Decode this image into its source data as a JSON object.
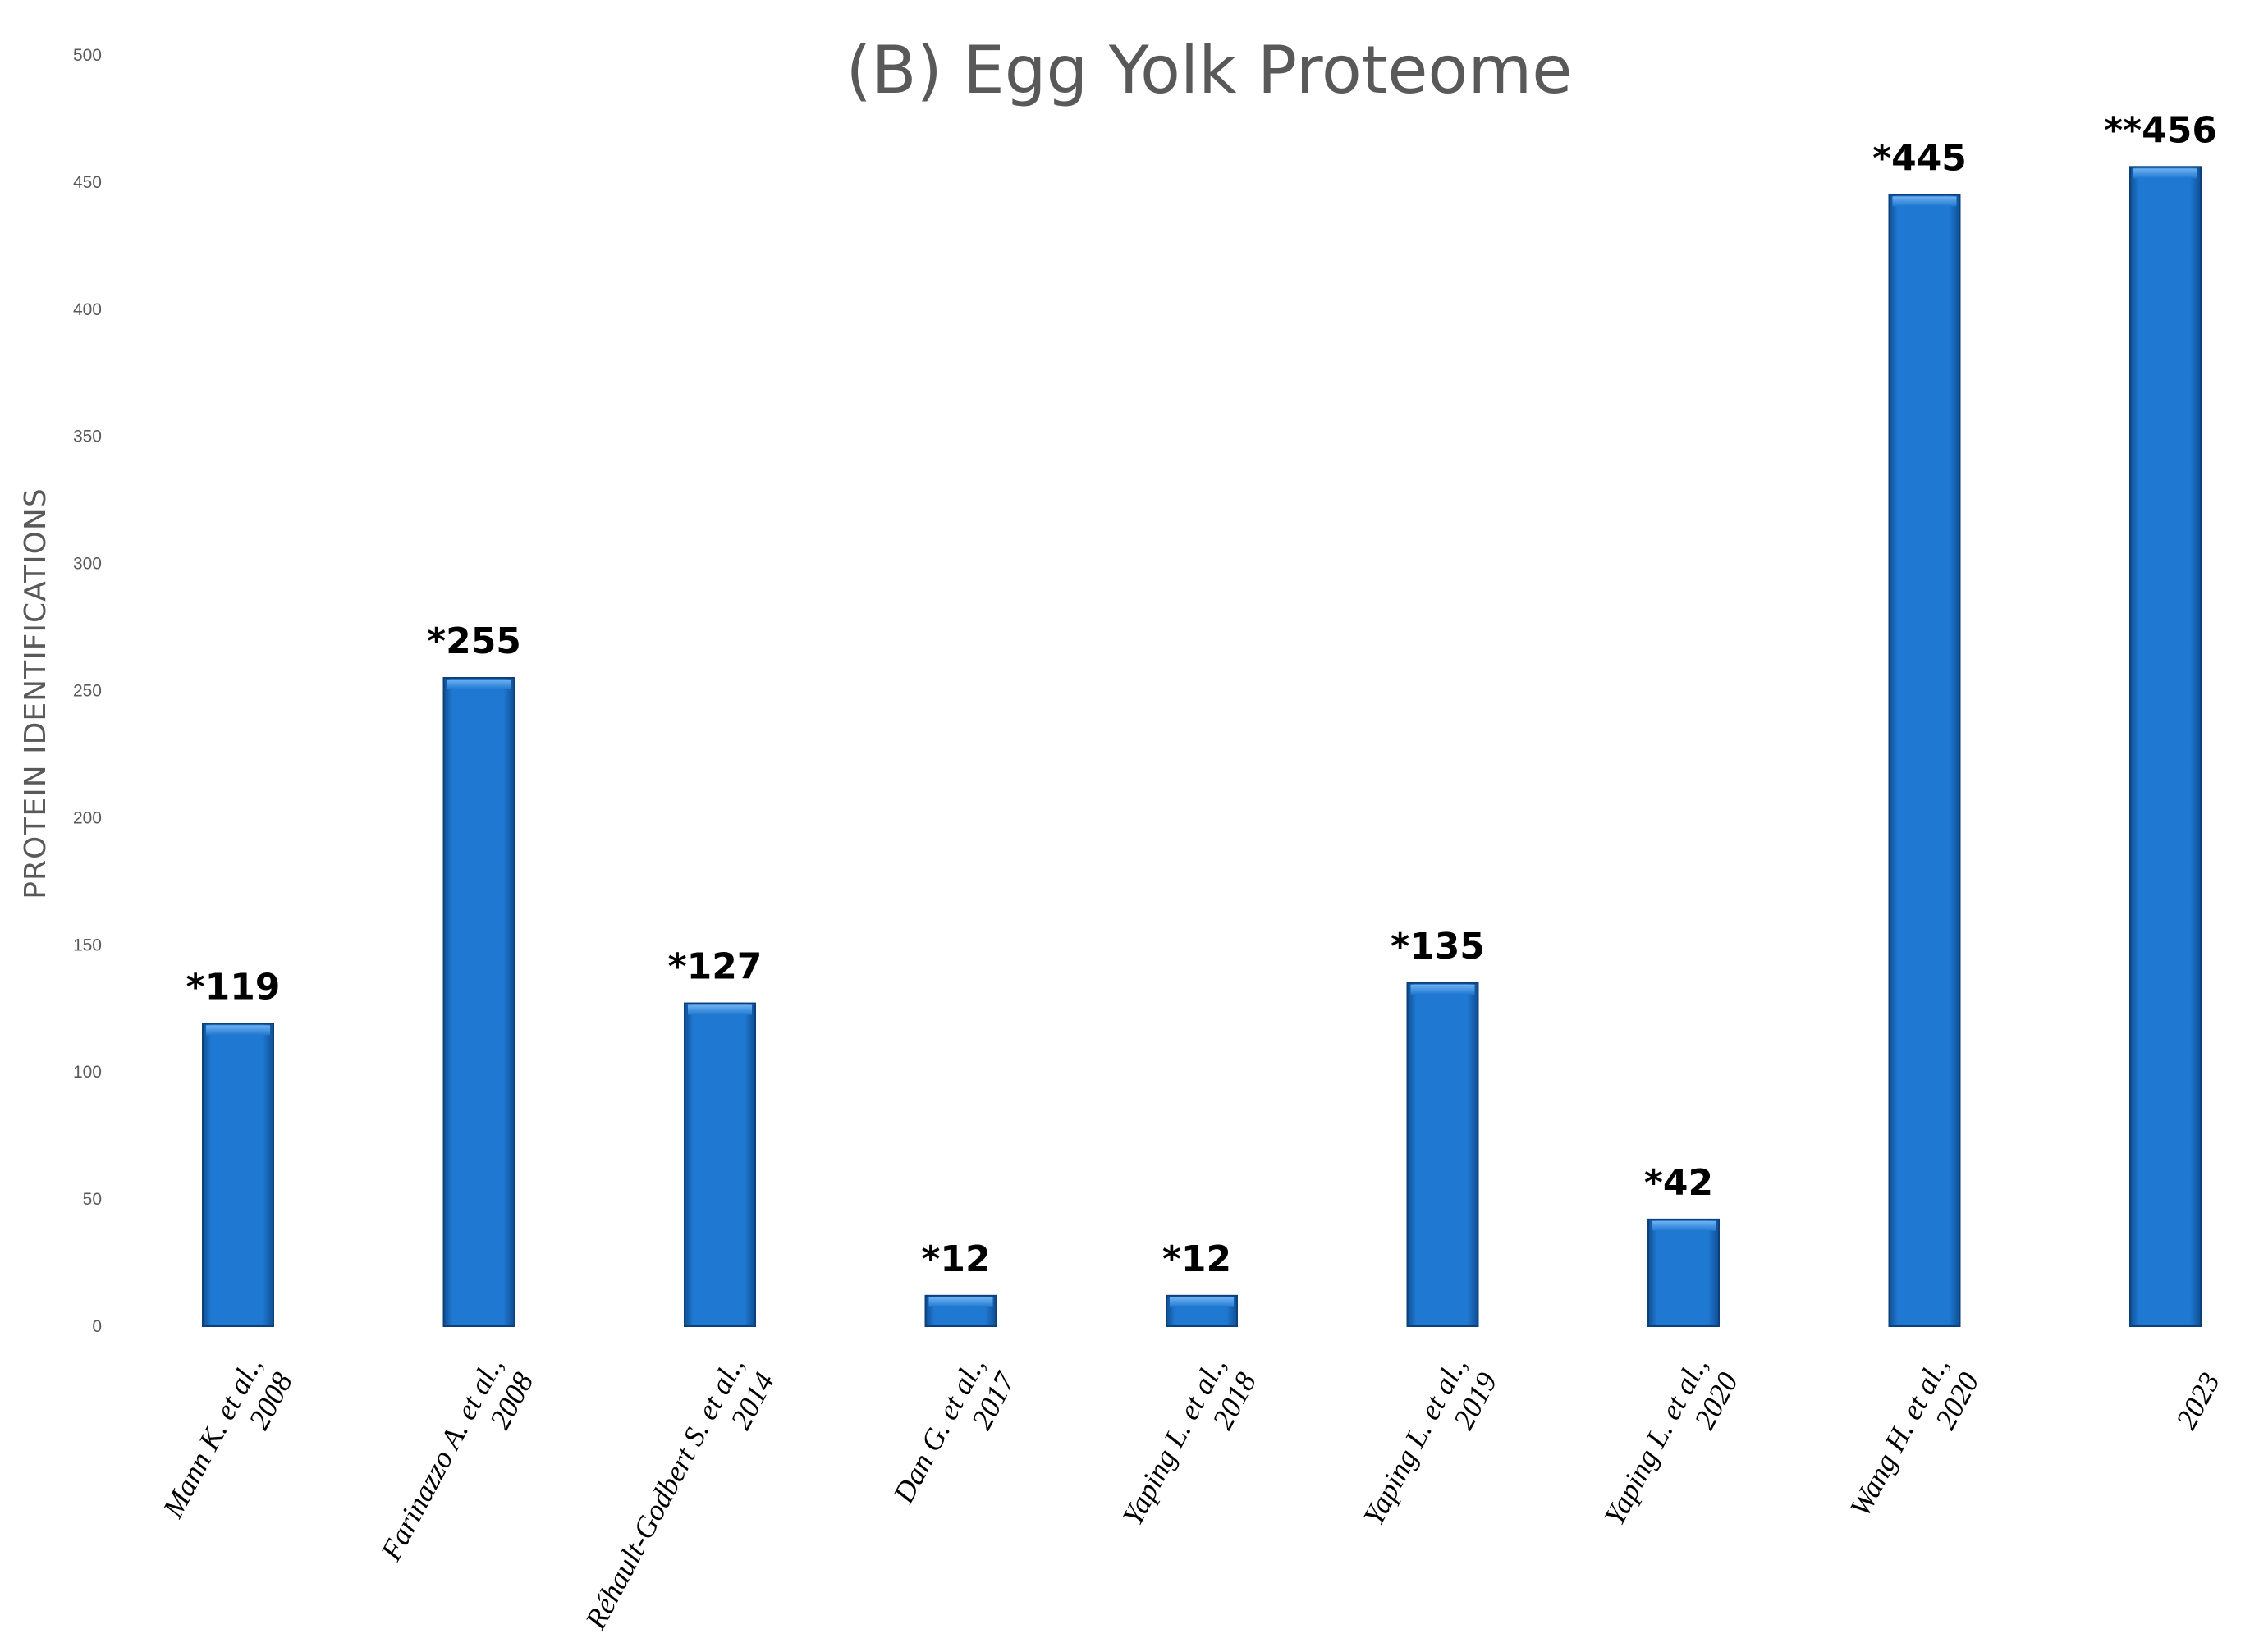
{
  "chart_data": {
    "type": "bar",
    "title": "(B) Egg Yolk Proteome",
    "ylabel": "PROTEIN IDENTIFICATIONS",
    "xlabel": "",
    "ylim": [
      0,
      500
    ],
    "yticks": [
      0,
      50,
      100,
      150,
      200,
      250,
      300,
      350,
      400,
      450,
      500
    ],
    "grid": false,
    "legend": "none",
    "bar_color": "#1f78d1",
    "categories": [
      [
        "Mann K. et al.,",
        "2008"
      ],
      [
        "Farinazzo A. et al.,",
        "2008"
      ],
      [
        "Réhault-Godbert S. et al.,",
        "2014"
      ],
      [
        "Dan G. et  al.,",
        "2017"
      ],
      [
        "Yaping L. et al.,",
        "2018"
      ],
      [
        "Yaping L. et  al.,",
        "2019"
      ],
      [
        "Yaping L. et  al.,",
        "2020"
      ],
      [
        "Wang H. et al.,",
        "2020"
      ],
      [
        "",
        "2023"
      ]
    ],
    "values": [
      119,
      255,
      127,
      12,
      12,
      135,
      42,
      445,
      456
    ],
    "data_labels": [
      "*119",
      "*255",
      "*127",
      "*12",
      "*12",
      "*135",
      "*42",
      "*445",
      "**456"
    ]
  }
}
